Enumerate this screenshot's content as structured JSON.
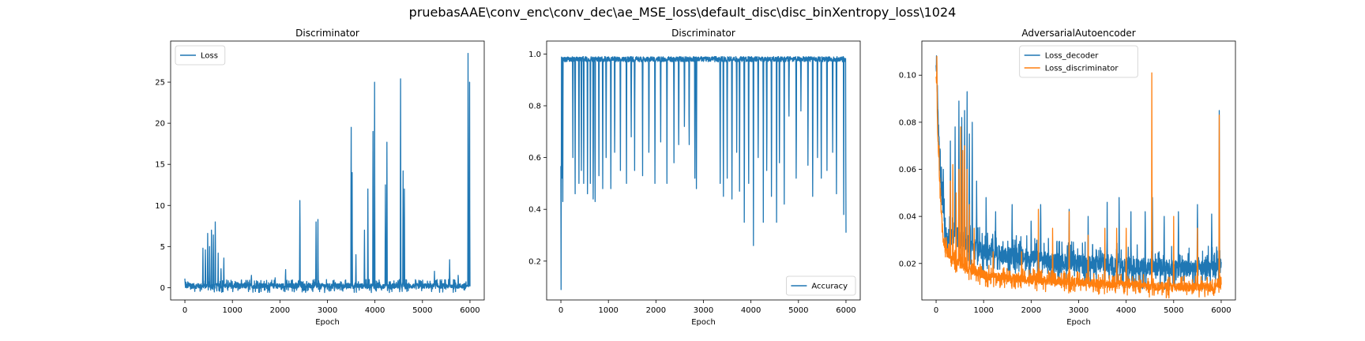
{
  "figure": {
    "suptitle": "pruebasAAE\\conv_enc\\conv_dec\\ae_MSE_loss\\default_disc\\disc_binXentropy_loss\\1024"
  },
  "chart_data": [
    {
      "type": "line",
      "title": "Discriminator",
      "xlabel": "Epoch",
      "ylabel": "",
      "xlim": [
        -300,
        6300
      ],
      "ylim": [
        -1.5,
        30
      ],
      "xticks": [
        0,
        1000,
        2000,
        3000,
        4000,
        5000,
        6000
      ],
      "yticks": [
        0,
        5,
        10,
        15,
        20,
        25
      ],
      "legend": "upper-left",
      "grid": false,
      "series": [
        {
          "name": "Loss",
          "color": "#1f77b4",
          "base": [
            [
              0,
              0.2
            ],
            [
              6000,
              0.2
            ]
          ],
          "noise": 0.5,
          "spikes": [
            [
              0,
              1.1
            ],
            [
              380,
              4.8
            ],
            [
              430,
              4.6
            ],
            [
              480,
              6.6
            ],
            [
              520,
              5.0
            ],
            [
              560,
              7.0
            ],
            [
              600,
              6.4
            ],
            [
              640,
              8.0
            ],
            [
              700,
              4.2
            ],
            [
              760,
              2.3
            ],
            [
              820,
              3.6
            ],
            [
              1400,
              1.5
            ],
            [
              1900,
              1.2
            ],
            [
              2120,
              2.2
            ],
            [
              2420,
              10.6
            ],
            [
              2760,
              8.0
            ],
            [
              2800,
              8.3
            ],
            [
              3500,
              19.5
            ],
            [
              3520,
              14.0
            ],
            [
              3600,
              4.0
            ],
            [
              3780,
              7.0
            ],
            [
              3850,
              12.0
            ],
            [
              3960,
              19.0
            ],
            [
              3990,
              25.0
            ],
            [
              4220,
              12.5
            ],
            [
              4250,
              17.7
            ],
            [
              4540,
              25.4
            ],
            [
              4590,
              14.2
            ],
            [
              4620,
              12.0
            ],
            [
              5250,
              2.0
            ],
            [
              5570,
              3.4
            ],
            [
              5750,
              1.5
            ],
            [
              5960,
              28.5
            ],
            [
              5990,
              25.0
            ]
          ]
        }
      ]
    },
    {
      "type": "line",
      "title": "Discriminator",
      "xlabel": "Epoch",
      "ylabel": "",
      "xlim": [
        -300,
        6300
      ],
      "ylim": [
        0.05,
        1.05
      ],
      "xticks": [
        0,
        1000,
        2000,
        3000,
        4000,
        5000,
        6000
      ],
      "yticks": [
        0.2,
        0.4,
        0.6,
        0.8,
        1.0
      ],
      "legend": "lower-right",
      "grid": false,
      "series": [
        {
          "name": "Accuracy",
          "color": "#1f77b4",
          "base": [
            [
              0,
              0.99
            ],
            [
              6000,
              0.99
            ]
          ],
          "noise": 0.02,
          "dips": [
            [
              5,
              0.09
            ],
            [
              20,
              0.52
            ],
            [
              40,
              0.43
            ],
            [
              250,
              0.6
            ],
            [
              300,
              0.46
            ],
            [
              380,
              0.5
            ],
            [
              430,
              0.55
            ],
            [
              480,
              0.5
            ],
            [
              560,
              0.46
            ],
            [
              620,
              0.5
            ],
            [
              680,
              0.44
            ],
            [
              720,
              0.43
            ],
            [
              800,
              0.53
            ],
            [
              880,
              0.48
            ],
            [
              950,
              0.6
            ],
            [
              1050,
              0.48
            ],
            [
              1130,
              0.62
            ],
            [
              1250,
              0.55
            ],
            [
              1380,
              0.5
            ],
            [
              1480,
              0.68
            ],
            [
              1550,
              0.55
            ],
            [
              1720,
              0.53
            ],
            [
              1850,
              0.62
            ],
            [
              1980,
              0.5
            ],
            [
              2100,
              0.66
            ],
            [
              2230,
              0.5
            ],
            [
              2380,
              0.58
            ],
            [
              2480,
              0.65
            ],
            [
              2600,
              0.72
            ],
            [
              2700,
              0.65
            ],
            [
              2820,
              0.52
            ],
            [
              2850,
              0.48
            ],
            [
              3350,
              0.5
            ],
            [
              3420,
              0.45
            ],
            [
              3500,
              0.52
            ],
            [
              3600,
              0.44
            ],
            [
              3700,
              0.62
            ],
            [
              3760,
              0.47
            ],
            [
              3860,
              0.35
            ],
            [
              3950,
              0.5
            ],
            [
              4050,
              0.26
            ],
            [
              4150,
              0.6
            ],
            [
              4260,
              0.35
            ],
            [
              4330,
              0.55
            ],
            [
              4430,
              0.45
            ],
            [
              4540,
              0.35
            ],
            [
              4600,
              0.58
            ],
            [
              4700,
              0.42
            ],
            [
              4800,
              0.76
            ],
            [
              4950,
              0.52
            ],
            [
              5050,
              0.78
            ],
            [
              5200,
              0.57
            ],
            [
              5300,
              0.45
            ],
            [
              5400,
              0.6
            ],
            [
              5480,
              0.52
            ],
            [
              5600,
              0.55
            ],
            [
              5720,
              0.62
            ],
            [
              5800,
              0.46
            ],
            [
              5950,
              0.38
            ],
            [
              6000,
              0.31
            ]
          ]
        }
      ]
    },
    {
      "type": "line",
      "title": "AdversarialAutoencoder",
      "xlabel": "Epoch",
      "ylabel": "",
      "xlim": [
        -300,
        6300
      ],
      "ylim": [
        0.0045,
        0.1145
      ],
      "xticks": [
        0,
        1000,
        2000,
        3000,
        4000,
        5000,
        6000
      ],
      "yticks": [
        0.02,
        0.04,
        0.06,
        0.08,
        0.1
      ],
      "legend": "upper-center",
      "grid": false,
      "series": [
        {
          "name": "Loss_decoder",
          "color": "#1f77b4",
          "base": [
            [
              0,
              0.105
            ],
            [
              80,
              0.06
            ],
            [
              200,
              0.032
            ],
            [
              500,
              0.03
            ],
            [
              1000,
              0.025
            ],
            [
              2000,
              0.022
            ],
            [
              3000,
              0.02
            ],
            [
              4000,
              0.019
            ],
            [
              5000,
              0.018
            ],
            [
              5900,
              0.018
            ],
            [
              6000,
              0.02
            ]
          ],
          "noise": 0.006,
          "spikes": [
            [
              10,
              0.108
            ],
            [
              60,
              0.074
            ],
            [
              150,
              0.06
            ],
            [
              300,
              0.072
            ],
            [
              400,
              0.078
            ],
            [
              480,
              0.089
            ],
            [
              540,
              0.082
            ],
            [
              600,
              0.085
            ],
            [
              650,
              0.093
            ],
            [
              700,
              0.075
            ],
            [
              760,
              0.08
            ],
            [
              850,
              0.055
            ],
            [
              1050,
              0.048
            ],
            [
              1250,
              0.042
            ],
            [
              1600,
              0.045
            ],
            [
              2000,
              0.038
            ],
            [
              2200,
              0.045
            ],
            [
              2800,
              0.043
            ],
            [
              3200,
              0.04
            ],
            [
              3600,
              0.046
            ],
            [
              3850,
              0.048
            ],
            [
              4100,
              0.042
            ],
            [
              4400,
              0.042
            ],
            [
              4550,
              0.048
            ],
            [
              4800,
              0.04
            ],
            [
              5100,
              0.042
            ],
            [
              5500,
              0.045
            ],
            [
              5800,
              0.041
            ],
            [
              5960,
              0.085
            ]
          ]
        },
        {
          "name": "Loss_discriminator",
          "color": "#ff7f0e",
          "base": [
            [
              0,
              0.1
            ],
            [
              60,
              0.06
            ],
            [
              150,
              0.03
            ],
            [
              300,
              0.022
            ],
            [
              600,
              0.018
            ],
            [
              1000,
              0.015
            ],
            [
              2000,
              0.013
            ],
            [
              3000,
              0.012
            ],
            [
              4000,
              0.011
            ],
            [
              5000,
              0.01
            ],
            [
              5900,
              0.01
            ],
            [
              6000,
              0.012
            ]
          ],
          "noise": 0.003,
          "spikes": [
            [
              15,
              0.108
            ],
            [
              60,
              0.07
            ],
            [
              300,
              0.055
            ],
            [
              350,
              0.062
            ],
            [
              420,
              0.05
            ],
            [
              480,
              0.06
            ],
            [
              520,
              0.078
            ],
            [
              560,
              0.068
            ],
            [
              600,
              0.07
            ],
            [
              650,
              0.06
            ],
            [
              700,
              0.045
            ],
            [
              800,
              0.035
            ],
            [
              1200,
              0.025
            ],
            [
              1800,
              0.025
            ],
            [
              2150,
              0.043
            ],
            [
              2450,
              0.035
            ],
            [
              2800,
              0.042
            ],
            [
              3200,
              0.032
            ],
            [
              3550,
              0.035
            ],
            [
              3800,
              0.035
            ],
            [
              4000,
              0.035
            ],
            [
              4540,
              0.101
            ],
            [
              5000,
              0.04
            ],
            [
              5500,
              0.035
            ],
            [
              5960,
              0.083
            ]
          ]
        }
      ]
    }
  ]
}
